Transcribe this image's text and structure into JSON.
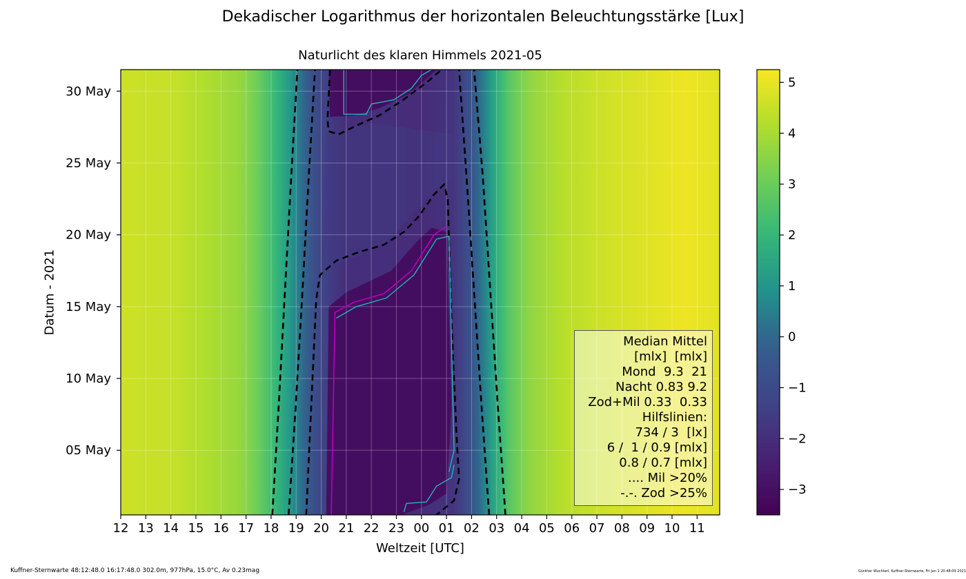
{
  "title": "Dekadischer Logarithmus der horizontalen Beleuchtungsstärke [Lux]",
  "chart_data": {
    "type": "heatmap",
    "subtitle": "Naturlicht des klaren Himmels 2021-05",
    "xlabel": "Weltzeit [UTC]",
    "ylabel": "Datum - 2021",
    "x_ticks": [
      "12",
      "13",
      "14",
      "15",
      "16",
      "17",
      "18",
      "19",
      "20",
      "21",
      "22",
      "23",
      "00",
      "01",
      "02",
      "03",
      "04",
      "05",
      "06",
      "07",
      "08",
      "09",
      "10",
      "11"
    ],
    "y_ticks": [
      "30 May",
      "25 May",
      "20 May",
      "15 May",
      "10 May",
      "05 May"
    ],
    "y_tick_days": [
      30,
      25,
      20,
      15,
      10,
      5
    ],
    "x_range_hours": [
      12,
      35.9
    ],
    "y_range_days": [
      0.5,
      31.5
    ],
    "grid": true,
    "colorbar": {
      "ticks": [
        "5",
        "4",
        "3",
        "2",
        "1",
        "0",
        "−1",
        "−2",
        "−3"
      ],
      "tick_values": [
        5,
        4,
        3,
        2,
        1,
        0,
        -1,
        -2,
        -3
      ],
      "range": [
        -3.5,
        5.25
      ],
      "colormap": "viridis"
    },
    "dashed_contours_lx": [
      "734",
      "3"
    ],
    "series": [
      {
        "values": [
          [
            18.05,
            0.5
          ],
          [
            18.3,
            8
          ],
          [
            18.55,
            16
          ],
          [
            18.8,
            24
          ],
          [
            19.05,
            31.5
          ]
        ]
      },
      {
        "values": [
          [
            18.7,
            0.5
          ],
          [
            18.98,
            8
          ],
          [
            19.25,
            16
          ],
          [
            19.5,
            24
          ],
          [
            19.75,
            31.5
          ]
        ]
      },
      {
        "values": [
          [
            19.4,
            0.5
          ],
          [
            19.6,
            8
          ],
          [
            19.8,
            15.5
          ],
          [
            19.95,
            17.2
          ],
          [
            20.6,
            18.2
          ],
          [
            21.5,
            18.8
          ],
          [
            22.5,
            19.3
          ],
          [
            23.3,
            20.2
          ],
          [
            23.9,
            21.3
          ],
          [
            24.5,
            22.8
          ],
          [
            24.9,
            23.5
          ],
          [
            25.05,
            22.5
          ],
          [
            25.2,
            14
          ],
          [
            25.4,
            6
          ],
          [
            25.5,
            3
          ],
          [
            25.3,
            1.5
          ],
          [
            24.6,
            0.5
          ]
        ]
      },
      {
        "values": [
          [
            26.7,
            0.5
          ],
          [
            26.4,
            8
          ],
          [
            26.1,
            16
          ],
          [
            25.8,
            24
          ],
          [
            25.5,
            31.5
          ]
        ]
      },
      {
        "values": [
          [
            27.35,
            0.5
          ],
          [
            27.05,
            8
          ],
          [
            26.75,
            16
          ],
          [
            26.45,
            24
          ],
          [
            26.1,
            31.5
          ]
        ]
      },
      {
        "values": [
          [
            20.35,
            31.5
          ],
          [
            20.25,
            28
          ],
          [
            20.3,
            27.2
          ],
          [
            20.7,
            27.0
          ],
          [
            21.4,
            27.6
          ],
          [
            22.3,
            28.3
          ],
          [
            23.2,
            29.3
          ],
          [
            24.2,
            30.6
          ],
          [
            24.8,
            31.5
          ]
        ]
      }
    ]
  },
  "legend": {
    "lines": [
      "Median Mittel",
      "[mlx]  [mlx]",
      "Mond  9.3  21",
      "Nacht 0.83 9.2",
      "Zod+Mil 0.33  0.33",
      "Hilfslinien:",
      "734 / 3  [lx]",
      "6 /  1 / 0.9 [mlx]",
      "0.8 / 0.7 [mlx]",
      ".... Mil >20%",
      "-.-. Zod >25%"
    ]
  },
  "footer": {
    "left": "Kuffner-Sternwarte 48:12:48.0 16:17:48.0 302.0m,  977hPa, 15.0°C, Av 0.23mag",
    "right": "Günther Wuchterl, Kuffner-Sternwarte, Fri Jan  1 20:48:09 2021"
  },
  "colors": {
    "viridis_low": "#46085c",
    "viridis_high": "#f5e626",
    "contour_dashed": "#000000",
    "moon_contour": "#c000c0",
    "moon_contour_2": "#20c0c0"
  }
}
